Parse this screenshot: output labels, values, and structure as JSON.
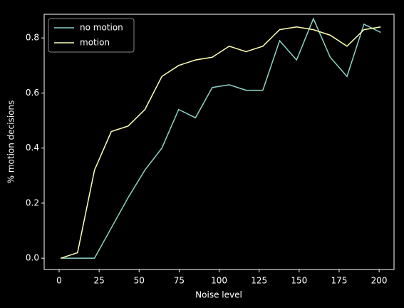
{
  "chart_data": {
    "type": "line",
    "xlabel": "Noise level",
    "ylabel": "% motion decisions",
    "x": [
      1,
      11.5,
      22.1,
      32.6,
      43.1,
      53.6,
      64.2,
      74.7,
      85.2,
      95.7,
      106.3,
      116.8,
      127.3,
      137.8,
      148.4,
      158.9,
      169.4,
      179.9,
      190.5,
      201
    ],
    "series": [
      {
        "name": "no motion",
        "color": "#8dd3c7",
        "values": [
          0,
          0,
          0,
          0.11,
          0.22,
          0.32,
          0.4,
          0.54,
          0.51,
          0.62,
          0.63,
          0.61,
          0.61,
          0.79,
          0.72,
          0.87,
          0.73,
          0.66,
          0.85,
          0.82
        ]
      },
      {
        "name": "motion",
        "color": "#feffb3",
        "values": [
          0,
          0.02,
          0.32,
          0.46,
          0.48,
          0.54,
          0.66,
          0.7,
          0.72,
          0.73,
          0.77,
          0.75,
          0.77,
          0.83,
          0.84,
          0.83,
          0.81,
          0.77,
          0.83,
          0.84
        ]
      }
    ],
    "xlim": [
      -9.35,
      209.3
    ],
    "ylim": [
      -0.041,
      0.886
    ],
    "xticks": [
      0,
      25,
      50,
      75,
      100,
      125,
      150,
      175,
      200
    ],
    "yticks": [
      {
        "value": 0,
        "label": "0.0"
      },
      0.2,
      0.4,
      0.6,
      0.8
    ],
    "legend": "upper left"
  }
}
